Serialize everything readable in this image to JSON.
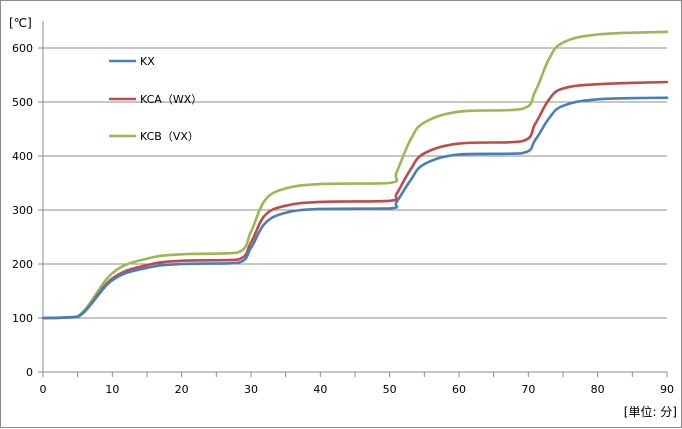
{
  "chart_data": {
    "type": "line",
    "title": "",
    "xlabel": "[単位: 分]",
    "ylabel": "[℃]",
    "xlim": [
      0,
      90
    ],
    "ylim": [
      0,
      650
    ],
    "x_ticks": [
      "0",
      "10",
      "20",
      "30",
      "40",
      "50",
      "60",
      "70",
      "80",
      "90"
    ],
    "y_ticks": [
      "0",
      "100",
      "200",
      "300",
      "400",
      "500",
      "600"
    ],
    "grid": "horizontal",
    "legend_position": "top-left",
    "series": [
      {
        "name": "KX",
        "color": "#4a7ebb",
        "x": [
          0,
          5,
          10,
          15,
          20,
          28,
          30,
          32,
          35,
          40,
          50,
          51,
          53,
          55,
          60,
          69,
          71,
          73,
          75,
          80,
          90
        ],
        "y": [
          100,
          102,
          170,
          193,
          200,
          202,
          230,
          275,
          295,
          302,
          303,
          315,
          355,
          385,
          403,
          405,
          430,
          470,
          493,
          505,
          508
        ]
      },
      {
        "name": "KCA（WX）",
        "color": "#be4b48",
        "x": [
          0,
          5,
          10,
          15,
          20,
          28,
          30,
          32,
          35,
          40,
          50,
          51,
          53,
          55,
          60,
          69,
          71,
          73,
          75,
          80,
          90
        ],
        "y": [
          100,
          102,
          173,
          198,
          206,
          208,
          240,
          290,
          308,
          315,
          317,
          330,
          375,
          405,
          423,
          427,
          460,
          505,
          525,
          533,
          537
        ]
      },
      {
        "name": "KCB（VX）",
        "color": "#98b954",
        "x": [
          0,
          5,
          10,
          15,
          20,
          28,
          30,
          32,
          35,
          40,
          50,
          51,
          53,
          55,
          60,
          69,
          71,
          73,
          75,
          80,
          90
        ],
        "y": [
          100,
          103,
          183,
          210,
          218,
          221,
          260,
          318,
          340,
          348,
          350,
          370,
          430,
          462,
          482,
          487,
          520,
          580,
          610,
          625,
          630
        ]
      }
    ]
  }
}
